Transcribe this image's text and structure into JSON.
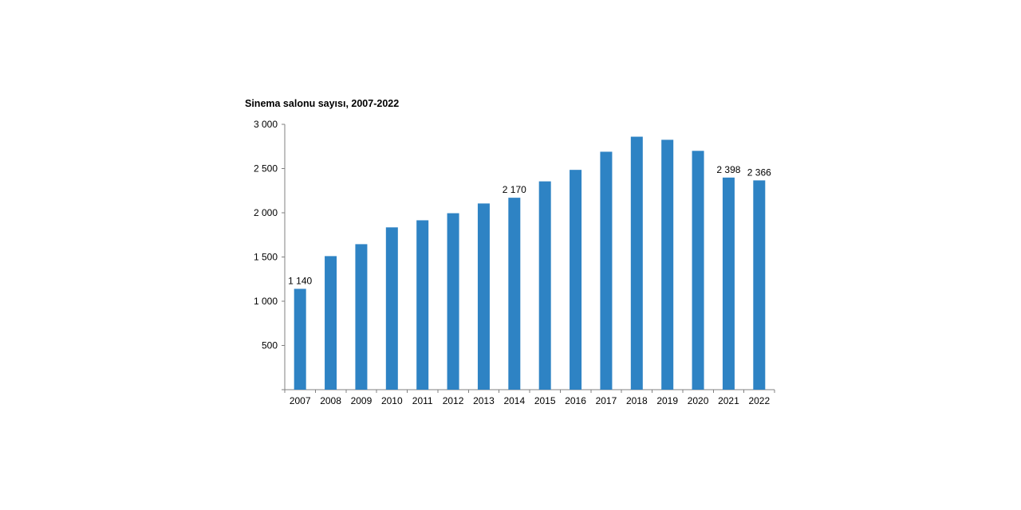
{
  "chart_data": {
    "type": "bar",
    "title": "Sinema salonu sayısı, 2007-2022",
    "xlabel": "",
    "ylabel": "",
    "categories": [
      "2007",
      "2008",
      "2009",
      "2010",
      "2011",
      "2012",
      "2013",
      "2014",
      "2015",
      "2016",
      "2017",
      "2018",
      "2019",
      "2020",
      "2021",
      "2022"
    ],
    "series": [
      {
        "name": "Sinema salonu sayısı",
        "values": [
          1140,
          1510,
          1645,
          1835,
          1915,
          1995,
          2105,
          2170,
          2355,
          2485,
          2690,
          2860,
          2825,
          2700,
          2398,
          2366
        ]
      }
    ],
    "ylim": [
      0,
      3000
    ],
    "yticks": [
      500,
      1000,
      1500,
      2000,
      2500,
      3000
    ],
    "ytick_labels": [
      "500",
      "1 000",
      "1 500",
      "2 000",
      "2 500",
      "3 000"
    ],
    "data_labels": [
      {
        "category": "2007",
        "text": "1 140"
      },
      {
        "category": "2014",
        "text": "2 170"
      },
      {
        "category": "2021",
        "text": "2 398"
      },
      {
        "category": "2022",
        "text": "2 366"
      }
    ],
    "bar_color": "#2e83c4",
    "grid": false,
    "legend": "none"
  }
}
